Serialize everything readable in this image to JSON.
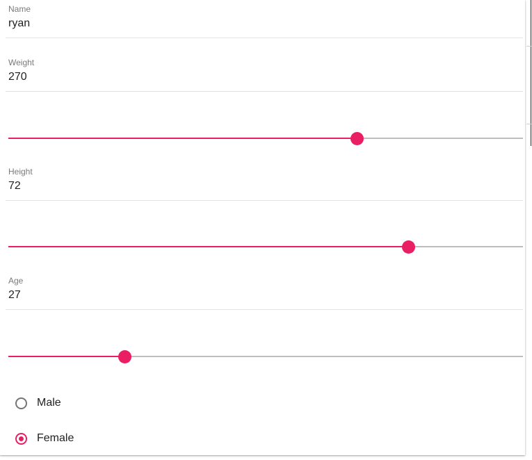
{
  "colors": {
    "accent": "#e91e63",
    "track": "#bdbdbd",
    "label": "#7a7a7a"
  },
  "form": {
    "name": {
      "label": "Name",
      "value": "ryan"
    },
    "weight": {
      "label": "Weight",
      "value": "270",
      "slider_fraction": 0.677
    },
    "height": {
      "label": "Height",
      "value": "72",
      "slider_fraction": 0.777
    },
    "age": {
      "label": "Age",
      "value": "27",
      "slider_fraction": 0.226
    },
    "gender": {
      "options": [
        {
          "label": "Male",
          "checked": false
        },
        {
          "label": "Female",
          "checked": true
        }
      ]
    }
  }
}
